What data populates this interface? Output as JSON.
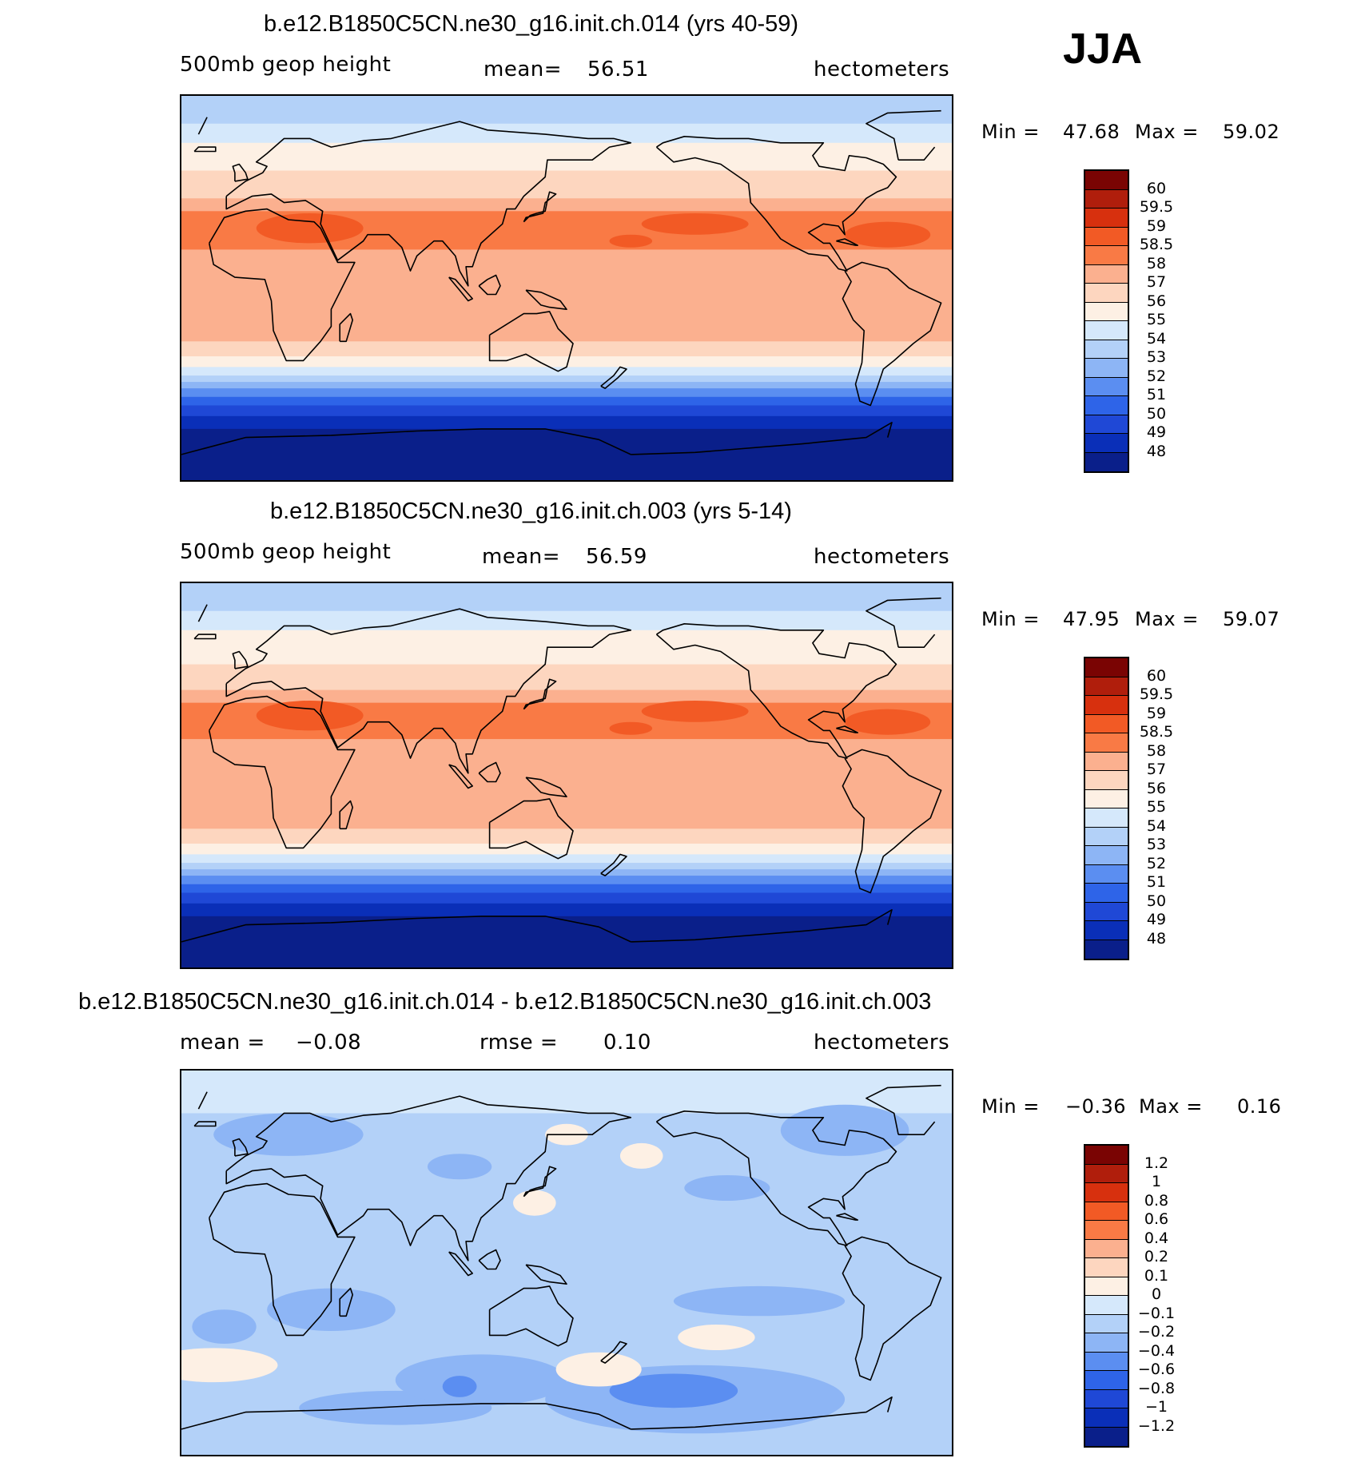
{
  "season": "JJA",
  "chart_data": [
    {
      "type": "heatmap",
      "title": "b.e12.B1850C5CN.ne30_g16.init.ch.014 (yrs 40-59)",
      "variable": "500mb geop height",
      "stat_label": "mean=",
      "stat_value": "56.51",
      "units": "hectometers",
      "min_label": "Min =",
      "min_value": "47.68",
      "max_label": "Max =",
      "max_value": "59.02",
      "colorbar_levels": [
        "60",
        "59.5",
        "59",
        "58.5",
        "58",
        "57",
        "56",
        "55",
        "54",
        "53",
        "52",
        "51",
        "50",
        "49",
        "48"
      ],
      "colorbar_colors": [
        "#7a0403",
        "#b01e0c",
        "#d7300e",
        "#f25a25",
        "#f97a45",
        "#fbb08f",
        "#fdd6bf",
        "#fdf0e4",
        "#d5e8fb",
        "#b3d1f8",
        "#8db5f5",
        "#5b8ef1",
        "#2e64e8",
        "#1f48d6",
        "#0a2fb8",
        "#0a1f8a"
      ],
      "zonal_bands": [
        {
          "lat_from": 90,
          "lat_to": 77,
          "level": "54"
        },
        {
          "lat_from": 77,
          "lat_to": 68,
          "level": "55"
        },
        {
          "lat_from": 68,
          "lat_to": 55,
          "level": "56"
        },
        {
          "lat_from": 55,
          "lat_to": 42,
          "level": "57"
        },
        {
          "lat_from": 42,
          "lat_to": 36,
          "level": "58"
        },
        {
          "lat_from": 36,
          "lat_to": 18,
          "level": "58.5"
        },
        {
          "lat_from": 18,
          "lat_to": -25,
          "level": "58"
        },
        {
          "lat_from": -25,
          "lat_to": -32,
          "level": "57"
        },
        {
          "lat_from": -32,
          "lat_to": -37,
          "level": "56"
        },
        {
          "lat_from": -37,
          "lat_to": -41,
          "level": "55"
        },
        {
          "lat_from": -41,
          "lat_to": -44,
          "level": "54"
        },
        {
          "lat_from": -44,
          "lat_to": -47,
          "level": "53"
        },
        {
          "lat_from": -47,
          "lat_to": -51,
          "level": "52"
        },
        {
          "lat_from": -51,
          "lat_to": -55,
          "level": "51"
        },
        {
          "lat_from": -55,
          "lat_to": -60,
          "level": "50"
        },
        {
          "lat_from": -60,
          "lat_to": -66,
          "level": "49"
        },
        {
          "lat_from": -66,
          "lat_to": -90,
          "level": "48"
        }
      ]
    },
    {
      "type": "heatmap",
      "title": "b.e12.B1850C5CN.ne30_g16.init.ch.003 (yrs 5-14)",
      "variable": "500mb geop height",
      "stat_label": "mean=",
      "stat_value": "56.59",
      "units": "hectometers",
      "min_label": "Min =",
      "min_value": "47.95",
      "max_label": "Max =",
      "max_value": "59.07",
      "colorbar_levels": [
        "60",
        "59.5",
        "59",
        "58.5",
        "58",
        "57",
        "56",
        "55",
        "54",
        "53",
        "52",
        "51",
        "50",
        "49",
        "48"
      ],
      "colorbar_colors": [
        "#7a0403",
        "#b01e0c",
        "#d7300e",
        "#f25a25",
        "#f97a45",
        "#fbb08f",
        "#fdd6bf",
        "#fdf0e4",
        "#d5e8fb",
        "#b3d1f8",
        "#8db5f5",
        "#5b8ef1",
        "#2e64e8",
        "#1f48d6",
        "#0a2fb8",
        "#0a1f8a"
      ],
      "zonal_bands": [
        {
          "lat_from": 90,
          "lat_to": 77,
          "level": "54"
        },
        {
          "lat_from": 77,
          "lat_to": 68,
          "level": "55"
        },
        {
          "lat_from": 68,
          "lat_to": 52,
          "level": "56"
        },
        {
          "lat_from": 52,
          "lat_to": 40,
          "level": "57"
        },
        {
          "lat_from": 40,
          "lat_to": 34,
          "level": "58"
        },
        {
          "lat_from": 34,
          "lat_to": 17,
          "level": "58.5"
        },
        {
          "lat_from": 17,
          "lat_to": -25,
          "level": "58"
        },
        {
          "lat_from": -25,
          "lat_to": -32,
          "level": "57"
        },
        {
          "lat_from": -32,
          "lat_to": -37,
          "level": "56"
        },
        {
          "lat_from": -37,
          "lat_to": -41,
          "level": "55"
        },
        {
          "lat_from": -41,
          "lat_to": -44,
          "level": "54"
        },
        {
          "lat_from": -44,
          "lat_to": -47,
          "level": "53"
        },
        {
          "lat_from": -47,
          "lat_to": -51,
          "level": "52"
        },
        {
          "lat_from": -51,
          "lat_to": -55,
          "level": "51"
        },
        {
          "lat_from": -55,
          "lat_to": -60,
          "level": "50"
        },
        {
          "lat_from": -60,
          "lat_to": -66,
          "level": "49"
        },
        {
          "lat_from": -66,
          "lat_to": -90,
          "level": "48"
        }
      ]
    },
    {
      "type": "heatmap",
      "title": "b.e12.B1850C5CN.ne30_g16.init.ch.014 - b.e12.B1850C5CN.ne30_g16.init.ch.003",
      "variable_label": "mean =",
      "variable_value": "−0.08",
      "stat_label": "rmse =",
      "stat_value": "0.10",
      "units": "hectometers",
      "min_label": "Min =",
      "min_value": "−0.36",
      "max_label": "Max =",
      "max_value": "0.16",
      "colorbar_levels": [
        "1.2",
        "1",
        "0.8",
        "0.6",
        "0.4",
        "0.2",
        "0.1",
        "0",
        "−0.1",
        "−0.2",
        "−0.4",
        "−0.6",
        "−0.8",
        "−1",
        "−1.2"
      ],
      "colorbar_colors": [
        "#7a0403",
        "#b01e0c",
        "#d7300e",
        "#f25a25",
        "#f97a45",
        "#fbb08f",
        "#fdd6bf",
        "#fdf0e4",
        "#d5e8fb",
        "#b3d1f8",
        "#8db5f5",
        "#5b8ef1",
        "#2e64e8",
        "#1f48d6",
        "#0a2fb8",
        "#0a1f8a"
      ],
      "zonal_bands": [
        {
          "lat_from": 90,
          "lat_to": 70,
          "level": "0"
        },
        {
          "lat_from": 70,
          "lat_to": -90,
          "level": "−0.1"
        }
      ]
    }
  ]
}
